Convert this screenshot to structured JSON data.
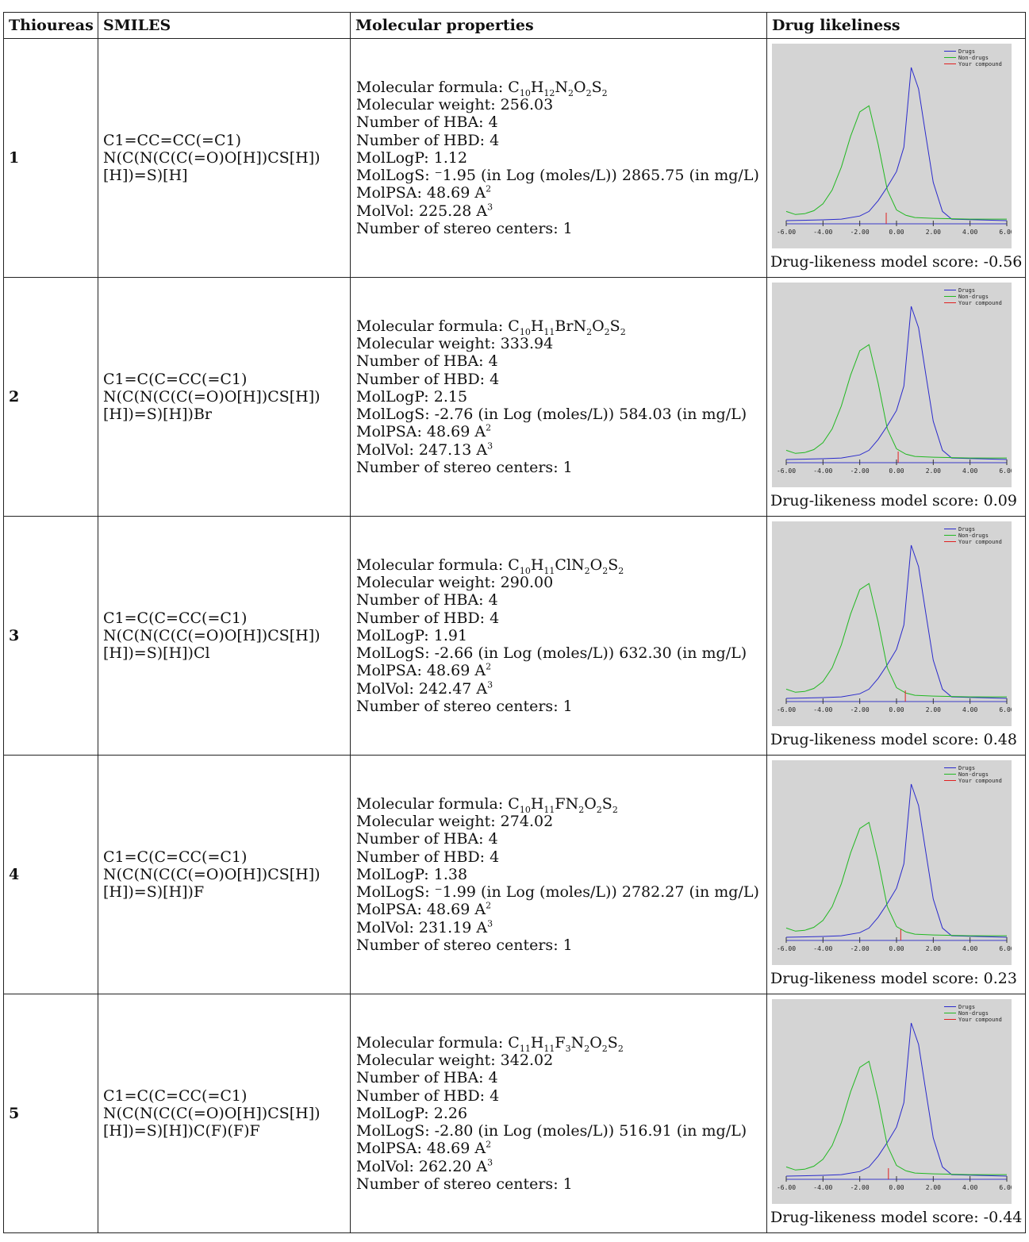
{
  "headers": [
    "Thioureas",
    "SMILES",
    "Molecular properties",
    "Drug likeliness"
  ],
  "rows": [
    {
      "id": "1",
      "smiles": [
        "C1=CC=CC(=C1)",
        "N(C(N(C(C(=O)O[H])CS[H])",
        "[H])=S)[H]"
      ],
      "formula": {
        "label": "Molecular formula: ",
        "parts": [
          [
            "C",
            ""
          ],
          [
            "10",
            "sub"
          ],
          [
            "H",
            ""
          ],
          [
            "12",
            "sub"
          ],
          [
            "N",
            ""
          ],
          [
            "2",
            "sub"
          ],
          [
            "O",
            ""
          ],
          [
            "2",
            "sub"
          ],
          [
            "S",
            ""
          ],
          [
            "2",
            "sub"
          ]
        ]
      },
      "mw": "Molecular weight: 256.03",
      "hba": "Number of HBA: 4",
      "hbd": "Number of HBD: 4",
      "logp": "MolLogP: 1.12",
      "logs": "MolLogS: ⁻1.95 (in Log (moles/L)) 2865.75 (in mg/L)",
      "psa_label": "MolPSA: 48.69 A",
      "psa_exp": "2",
      "vol_label": "MolVol: 225.28 A",
      "vol_exp": "3",
      "stereo": "Number of stereo centers: 1",
      "score_text": "Drug-likeness model score: -0.56",
      "score": -0.56
    },
    {
      "id": "2",
      "smiles": [
        "C1=C(C=CC(=C1)",
        "N(C(N(C(C(=O)O[H])CS[H])",
        "[H])=S)[H])Br"
      ],
      "formula": {
        "label": "Molecular formula: ",
        "parts": [
          [
            "C",
            ""
          ],
          [
            "10",
            "sub"
          ],
          [
            "H",
            ""
          ],
          [
            "11",
            "sub"
          ],
          [
            "BrN",
            ""
          ],
          [
            "2",
            "sub"
          ],
          [
            "O",
            ""
          ],
          [
            "2",
            "sub"
          ],
          [
            "S",
            ""
          ],
          [
            "2",
            "sub"
          ]
        ]
      },
      "mw": "Molecular weight: 333.94",
      "hba": "Number of HBA: 4",
      "hbd": "Number of HBD: 4",
      "logp": "MolLogP: 2.15",
      "logs": "MolLogS: -2.76 (in Log (moles/L)) 584.03 (in mg/L)",
      "psa_label": "MolPSA: 48.69 A",
      "psa_exp": "2",
      "vol_label": "MolVol: 247.13 A",
      "vol_exp": "3",
      "stereo": "Number of stereo centers: 1",
      "score_text": "Drug-likeness model score: 0.09",
      "score": 0.09
    },
    {
      "id": "3",
      "smiles": [
        "C1=C(C=CC(=C1)",
        "N(C(N(C(C(=O)O[H])CS[H])",
        "[H])=S)[H])Cl"
      ],
      "formula": {
        "label": "Molecular formula: ",
        "parts": [
          [
            "C",
            ""
          ],
          [
            "10",
            "sub"
          ],
          [
            "H",
            ""
          ],
          [
            "11",
            "sub"
          ],
          [
            "ClN",
            ""
          ],
          [
            "2",
            "sub"
          ],
          [
            "O",
            ""
          ],
          [
            "2",
            "sub"
          ],
          [
            "S",
            ""
          ],
          [
            "2",
            "sub"
          ]
        ]
      },
      "mw": "Molecular weight: 290.00",
      "hba": "Number of HBA: 4",
      "hbd": "Number of HBD: 4",
      "logp": "MolLogP: 1.91",
      "logs": "MolLogS: -2.66 (in Log (moles/L)) 632.30 (in mg/L)",
      "psa_label": "MolPSA: 48.69 A",
      "psa_exp": "2",
      "vol_label": "MolVol: 242.47 A",
      "vol_exp": "3",
      "stereo": "Number of stereo centers: 1",
      "score_text": "Drug-likeness model score: 0.48",
      "score": 0.48
    },
    {
      "id": "4",
      "smiles": [
        "C1=C(C=CC(=C1)",
        "N(C(N(C(C(=O)O[H])CS[H])",
        "[H])=S)[H])F"
      ],
      "formula": {
        "label": "Molecular formula: ",
        "parts": [
          [
            "C",
            ""
          ],
          [
            "10",
            "sub"
          ],
          [
            "H",
            ""
          ],
          [
            "11",
            "sub"
          ],
          [
            "FN",
            ""
          ],
          [
            "2",
            "sub"
          ],
          [
            "O",
            ""
          ],
          [
            "2",
            "sub"
          ],
          [
            "S",
            ""
          ],
          [
            "2",
            "sub"
          ]
        ]
      },
      "mw": "Molecular weight: 274.02",
      "hba": "Number of HBA: 4",
      "hbd": "Number of HBD: 4",
      "logp": "MolLogP: 1.38",
      "logs": "MolLogS: ⁻1.99 (in Log (moles/L)) 2782.27 (in mg/L)",
      "psa_label": "MolPSA: 48.69 A",
      "psa_exp": "2",
      "vol_label": "MolVol: 231.19 A",
      "vol_exp": "3",
      "stereo": "Number of stereo centers: 1",
      "score_text": "Drug-likeness model score: 0.23",
      "score": 0.23
    },
    {
      "id": "5",
      "smiles": [
        "C1=C(C=CC(=C1)",
        "N(C(N(C(C(=O)O[H])CS[H])",
        "[H])=S)[H])C(F)(F)F"
      ],
      "formula": {
        "label": "Molecular formula: ",
        "parts": [
          [
            "C",
            ""
          ],
          [
            "11",
            "sub"
          ],
          [
            "H",
            ""
          ],
          [
            "11",
            "sub"
          ],
          [
            "F",
            ""
          ],
          [
            "3",
            "sub"
          ],
          [
            "N",
            ""
          ],
          [
            "2",
            "sub"
          ],
          [
            "O",
            ""
          ],
          [
            "2",
            "sub"
          ],
          [
            "S",
            ""
          ],
          [
            "2",
            "sub"
          ]
        ]
      },
      "mw": "Molecular weight: 342.02",
      "hba": "Number of HBA: 4",
      "hbd": "Number of HBD: 4",
      "logp": "MolLogP: 2.26",
      "logs": "MolLogS: -2.80 (in Log (moles/L)) 516.91 (in mg/L)",
      "psa_label": "MolPSA: 48.69 A",
      "psa_exp": "2",
      "vol_label": "MolVol: 262.20 A",
      "vol_exp": "3",
      "stereo": "Number of stereo centers: 1",
      "score_text": "Drug-likeness model score: -0.44",
      "score": -0.44
    }
  ],
  "chart_data": {
    "type": "line",
    "xlim": [
      -6,
      6
    ],
    "x_ticks": [
      "-6.00",
      "-4.00",
      "-2.00",
      "0.00",
      "2.00",
      "4.00",
      "6.00"
    ],
    "legend": [
      "Drugs",
      "Non-drugs",
      "Your compound"
    ],
    "legend_placement": "top-right",
    "colors": {
      "drugs": "#2a2acc",
      "nondrugs": "#22b822",
      "compound": "#e02020",
      "axis": "#3a3ac8",
      "bg": "#d4d4d4"
    },
    "series": [
      {
        "name": "Drugs",
        "x": [
          -6,
          -4,
          -3,
          -2,
          -1.5,
          -1,
          -0.5,
          0,
          0.4,
          0.8,
          1.2,
          1.6,
          2,
          2.5,
          3,
          6
        ],
        "y": [
          0.0,
          0.005,
          0.01,
          0.03,
          0.06,
          0.13,
          0.22,
          0.32,
          0.48,
          1.0,
          0.86,
          0.55,
          0.25,
          0.06,
          0.01,
          0.0
        ]
      },
      {
        "name": "Non-drugs",
        "x": [
          -6,
          -5.5,
          -5,
          -4.5,
          -4,
          -3.5,
          -3,
          -2.5,
          -2,
          -1.5,
          -1,
          -0.5,
          0,
          0.5,
          1,
          2,
          4,
          6
        ],
        "y": [
          0.06,
          0.04,
          0.045,
          0.065,
          0.11,
          0.2,
          0.35,
          0.55,
          0.71,
          0.75,
          0.5,
          0.2,
          0.07,
          0.035,
          0.02,
          0.015,
          0.01,
          0.01
        ]
      }
    ]
  }
}
